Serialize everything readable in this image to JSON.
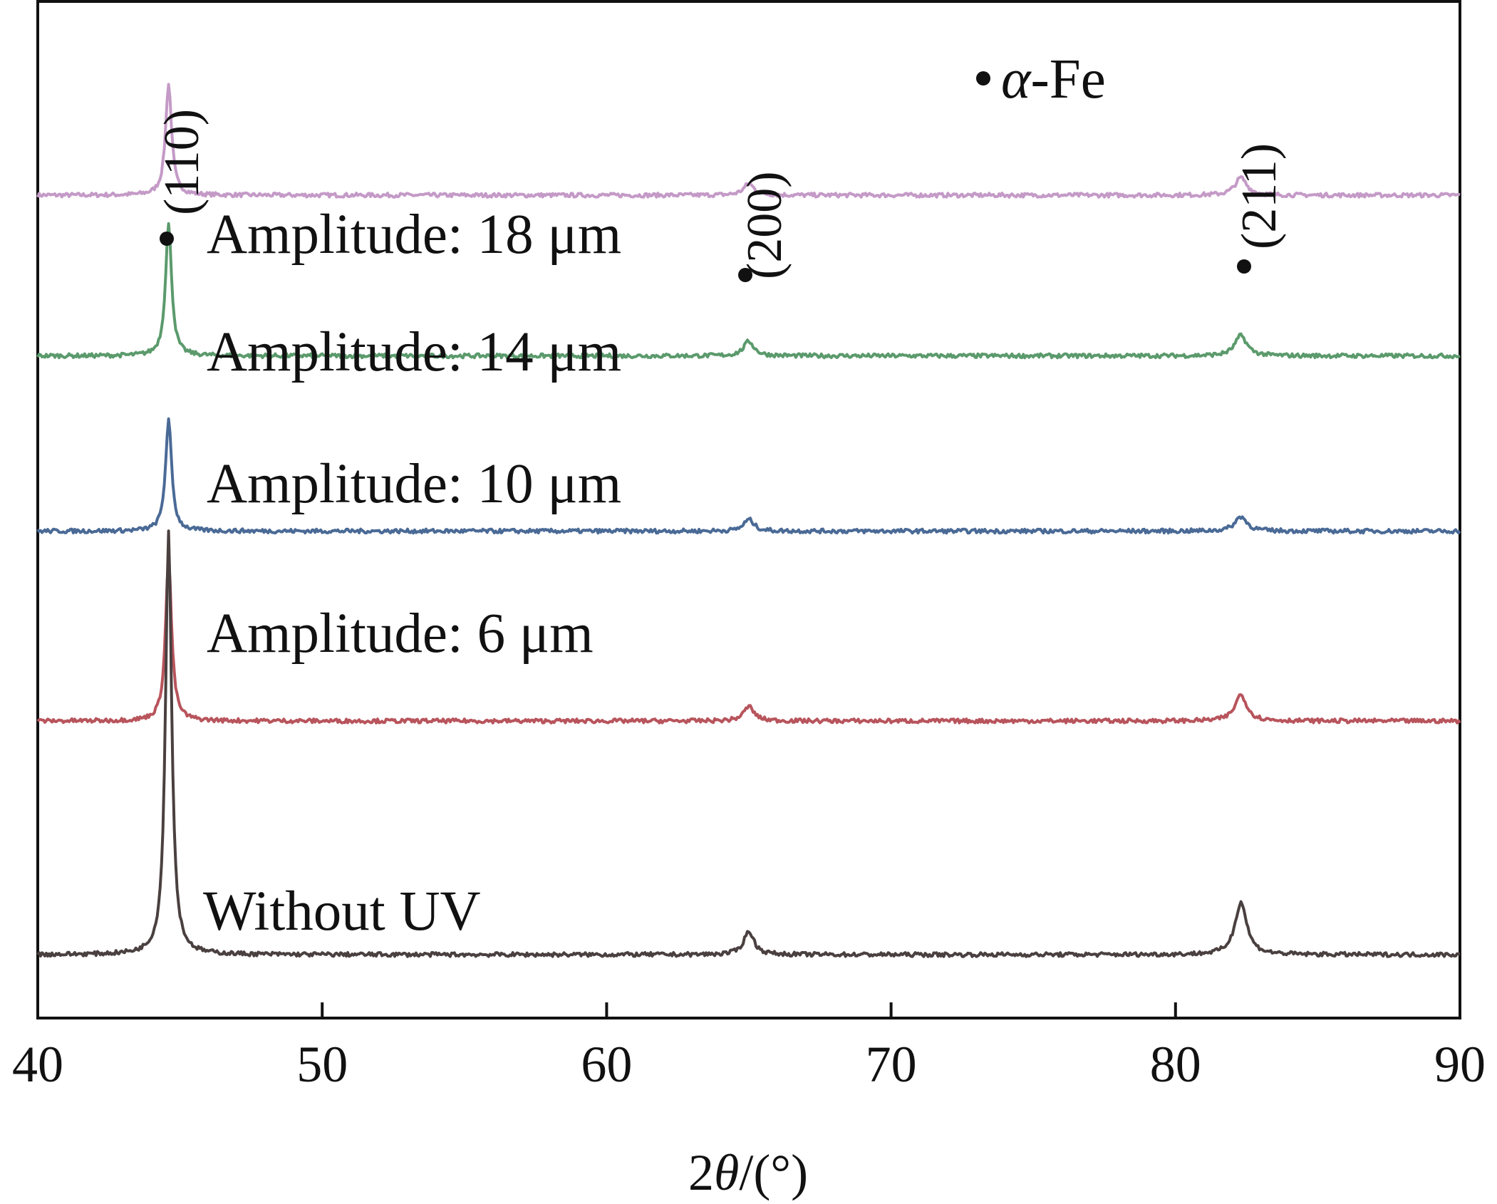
{
  "chart_data": {
    "type": "line",
    "title": "",
    "xlabel_prefix": "2",
    "xlabel_symbol": "θ",
    "xlabel_suffix": "/(°)",
    "ylabel": "",
    "xlim": [
      40,
      90
    ],
    "xticks": [
      "40",
      "50",
      "60",
      "70",
      "80",
      "90"
    ],
    "y_axis": "arbitrary intensity, stacked offsets, no ticks",
    "peaks_2theta": [
      44.6,
      65.0,
      82.3
    ],
    "peak_labels": [
      "(110)",
      "(200)",
      "(211)"
    ],
    "phase_legend": {
      "symbol": "α",
      "text": "-Fe"
    },
    "series": [
      {
        "name": "Amplitude: 18 μm",
        "color": "#c49ac7",
        "baseline": 2.6,
        "peak_heights": [
          0.38,
          0.04,
          0.06
        ]
      },
      {
        "name": "Amplitude: 14 μm",
        "color": "#5b9a6c",
        "baseline": 2.05,
        "peak_heights": [
          0.45,
          0.05,
          0.07
        ]
      },
      {
        "name": "Amplitude: 10 μm",
        "color": "#4a6a96",
        "baseline": 1.45,
        "peak_heights": [
          0.38,
          0.04,
          0.05
        ]
      },
      {
        "name": "Amplitude: 6 μm",
        "color": "#b8545c",
        "baseline": 0.8,
        "peak_heights": [
          0.55,
          0.05,
          0.09
        ]
      },
      {
        "name": "Without UV",
        "color": "#4a4040",
        "baseline": 0.0,
        "peak_heights": [
          1.45,
          0.08,
          0.18
        ]
      }
    ]
  }
}
